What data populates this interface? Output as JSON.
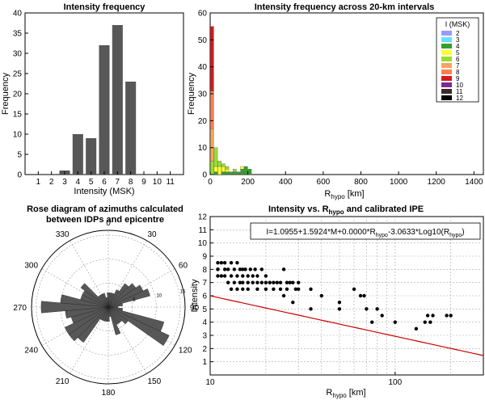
{
  "chart_data": [
    {
      "type": "bar",
      "title": "Intensity frequency",
      "xlabel": "Intensity (MSK)",
      "ylabel": "Frequency",
      "categories": [
        1,
        2,
        3,
        4,
        5,
        6,
        7,
        8,
        9,
        10,
        11
      ],
      "values": [
        0,
        0,
        1,
        10,
        9,
        32,
        37,
        23,
        0,
        0,
        0
      ],
      "ylim": [
        0,
        40
      ],
      "yticks": [
        0,
        5,
        10,
        15,
        20,
        25,
        30,
        35,
        40
      ],
      "bar_color": "#575757"
    },
    {
      "type": "bar",
      "title": "Intensity frequency across 20-km intervals",
      "xlabel_main": "R",
      "xlabel_sub": "hypo",
      "xlabel_unit": " [km]",
      "ylabel": "Frequency",
      "stacked": true,
      "bin_width_km": 20,
      "bin_centers_km": [
        10,
        30,
        50,
        70,
        90,
        110,
        130,
        150,
        170,
        190,
        210
      ],
      "xlim": [
        0,
        1450
      ],
      "xticks": [
        0,
        200,
        400,
        600,
        800,
        1000,
        1200,
        1400
      ],
      "ylim": [
        0,
        60
      ],
      "yticks": [
        0,
        10,
        20,
        30,
        40,
        50,
        60
      ],
      "legend_title": "I (MSK)",
      "legend_position": "top-right",
      "series": [
        {
          "name": "2",
          "color": "#9999ff",
          "values": [
            0,
            0,
            0,
            0,
            0,
            0,
            0,
            0,
            0,
            0,
            0
          ]
        },
        {
          "name": "3",
          "color": "#66e0ff",
          "values": [
            0,
            0,
            0,
            0,
            0,
            0,
            0,
            0,
            0,
            0,
            0
          ]
        },
        {
          "name": "4",
          "color": "#33a02c",
          "values": [
            0,
            1,
            0,
            1,
            1,
            1,
            1,
            1,
            2,
            3,
            2
          ]
        },
        {
          "name": "5",
          "color": "#ffff33",
          "values": [
            0,
            2,
            3,
            2,
            1,
            0,
            0,
            0,
            1,
            0,
            0
          ]
        },
        {
          "name": "6",
          "color": "#99dd33",
          "values": [
            5,
            7,
            2,
            1,
            1,
            0,
            1,
            0,
            0,
            0,
            0
          ]
        },
        {
          "name": "7",
          "color": "#f4a460",
          "values": [
            12,
            0,
            0,
            0,
            0,
            0,
            0,
            0,
            0,
            0,
            0
          ]
        },
        {
          "name": "8",
          "color": "#ff7f50",
          "values": [
            14,
            0,
            0,
            0,
            0,
            0,
            0,
            0,
            0,
            0,
            0
          ]
        },
        {
          "name": "9",
          "color": "#d7191c",
          "values": [
            24,
            0,
            0,
            0,
            0,
            0,
            0,
            0,
            0,
            0,
            0
          ]
        },
        {
          "name": "10",
          "color": "#7b2a90",
          "values": [
            0,
            0,
            0,
            0,
            0,
            0,
            0,
            0,
            0,
            0,
            0
          ]
        },
        {
          "name": "11",
          "color": "#3a2a2a",
          "values": [
            0,
            0,
            0,
            0,
            0,
            0,
            0,
            0,
            0,
            0,
            0
          ]
        },
        {
          "name": "12",
          "color": "#000000",
          "values": [
            0,
            0,
            0,
            0,
            0,
            0,
            0,
            0,
            0,
            0,
            0
          ]
        }
      ]
    },
    {
      "type": "rose",
      "title_line1": "Rose diagram of azimuths calculated",
      "title_line2": "between  IDPs and epicentre",
      "angle_labels": [
        0,
        30,
        60,
        90,
        120,
        150,
        180,
        210,
        240,
        270,
        300,
        330
      ],
      "radial_ticks": [
        5,
        10,
        15
      ],
      "rmax": 16,
      "sector_width_deg": 10,
      "sector_centers_deg": [
        0,
        10,
        20,
        30,
        40,
        50,
        60,
        70,
        80,
        90,
        100,
        110,
        120,
        130,
        140,
        150,
        160,
        170,
        180,
        190,
        200,
        210,
        220,
        230,
        240,
        250,
        260,
        270,
        280,
        290,
        300,
        310,
        320,
        330,
        340,
        350
      ],
      "counts": [
        3,
        3,
        3,
        4,
        6,
        7,
        8,
        9,
        3,
        2,
        3,
        12,
        14,
        5,
        4,
        4,
        6,
        2,
        3,
        3,
        3,
        3,
        9,
        10,
        10,
        8,
        9,
        14,
        10,
        6,
        6,
        7,
        3,
        3,
        3,
        2
      ],
      "fill_color": "#575757"
    },
    {
      "type": "scatter",
      "title_main": "Intensity vs. R",
      "title_sub": "hypo",
      "title_rest": " and calibrated IPE",
      "xlabel_main": "R",
      "xlabel_sub": "hypo",
      "xlabel_unit": " [km]",
      "ylabel": "Intensity",
      "xscale": "log",
      "xlim": [
        10,
        300
      ],
      "ylim": [
        0,
        12
      ],
      "yticks": [
        1,
        2,
        3,
        4,
        5,
        6,
        7,
        8,
        9,
        10,
        11,
        12
      ],
      "xticks_labeled": [
        10,
        100
      ],
      "equation_main": "I=1.0955+1.5924*M+0.0000*R",
      "equation_sub1": "hypo",
      "equation_mid": "-3.0633*Log10(R",
      "equation_sub2": "hypo",
      "equation_end": ")",
      "fit": {
        "a": 1.0955,
        "b": 1.5924,
        "M": 5.0,
        "c": 0.0,
        "d": -3.0633,
        "color": "#cc0000"
      },
      "points": [
        [
          11,
          8
        ],
        [
          11,
          8.5
        ],
        [
          11,
          7.5
        ],
        [
          11,
          8
        ],
        [
          11.5,
          8.5
        ],
        [
          11.5,
          7.5
        ],
        [
          12,
          8
        ],
        [
          12,
          8.5
        ],
        [
          12,
          7.5
        ],
        [
          12.5,
          7
        ],
        [
          12.5,
          8
        ],
        [
          13,
          8.5
        ],
        [
          13,
          7.5
        ],
        [
          13,
          6.5
        ],
        [
          13.5,
          8
        ],
        [
          13.5,
          7
        ],
        [
          14,
          8.5
        ],
        [
          14,
          7.5
        ],
        [
          14,
          6.5
        ],
        [
          14.5,
          8
        ],
        [
          14.5,
          7
        ],
        [
          15,
          8
        ],
        [
          15,
          7.5
        ],
        [
          15,
          7
        ],
        [
          15,
          6.5
        ],
        [
          15.5,
          8
        ],
        [
          16,
          7.5
        ],
        [
          16,
          7
        ],
        [
          16,
          6.5
        ],
        [
          16.5,
          8
        ],
        [
          17,
          7.5
        ],
        [
          17,
          7
        ],
        [
          17.5,
          8
        ],
        [
          18,
          7.5
        ],
        [
          18,
          7
        ],
        [
          18,
          6.5
        ],
        [
          19,
          7
        ],
        [
          19,
          8
        ],
        [
          20,
          7
        ],
        [
          20,
          7.5
        ],
        [
          20,
          6.5
        ],
        [
          21,
          7
        ],
        [
          22,
          7
        ],
        [
          22,
          6.5
        ],
        [
          23,
          7
        ],
        [
          24,
          7
        ],
        [
          24,
          6.5
        ],
        [
          25,
          6
        ],
        [
          25,
          8
        ],
        [
          26,
          7
        ],
        [
          26,
          6.5
        ],
        [
          27,
          7
        ],
        [
          28,
          7
        ],
        [
          28,
          5.5
        ],
        [
          29,
          6.5
        ],
        [
          30,
          7
        ],
        [
          30,
          6.5
        ],
        [
          35,
          6.5
        ],
        [
          35,
          5
        ],
        [
          40,
          6
        ],
        [
          50,
          5.5
        ],
        [
          50,
          5
        ],
        [
          60,
          6.5
        ],
        [
          65,
          6
        ],
        [
          68,
          6
        ],
        [
          70,
          5
        ],
        [
          75,
          4
        ],
        [
          80,
          5
        ],
        [
          85,
          4.5
        ],
        [
          100,
          4
        ],
        [
          130,
          3.5
        ],
        [
          145,
          4
        ],
        [
          150,
          4.5
        ],
        [
          155,
          4
        ],
        [
          160,
          4.5
        ],
        [
          190,
          4.5
        ],
        [
          200,
          4.5
        ]
      ]
    }
  ]
}
